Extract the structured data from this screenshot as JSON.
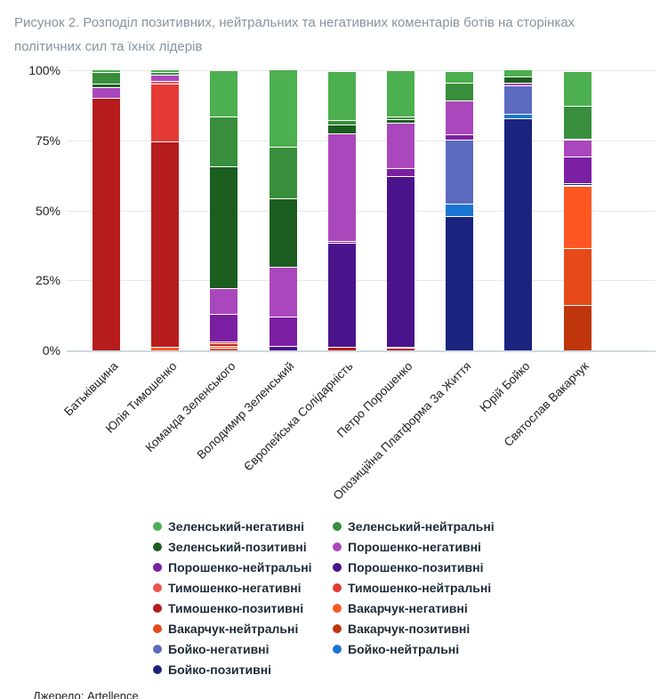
{
  "title": "Рисунок 2. Розподіл позитивних, нейтральних та негативних коментарів ботів на сторінках політичних сил та їхніх лідерів",
  "source": "Джерело: Artellence",
  "chart_data": {
    "type": "bar",
    "variant": "stacked-percent",
    "grid": true,
    "ylim": [
      0,
      100
    ],
    "y_ticks": [
      {
        "percent": 100,
        "label": "100%"
      },
      {
        "percent": 75,
        "label": "75%"
      },
      {
        "percent": 50,
        "label": "50%"
      },
      {
        "percent": 25,
        "label": "25%"
      },
      {
        "percent": 0,
        "label": "0%"
      }
    ],
    "categories": [
      "Батьківщина",
      "Юлія Тимошенко",
      "Команда Зеленського",
      "Володимир Зеленський",
      "Європейська Солідарність",
      "Петро Порошенко",
      "Опозиційна Платформа За Життя",
      "Юрій Бойко",
      "Святослав Вакарчук"
    ],
    "series_stack_order_note": "bottom-to-top stacking; values are percent of each bar",
    "series": [
      {
        "name": "Вакарчук-позитивні",
        "color": "#bf360c",
        "values": [
          0,
          0,
          0,
          0,
          0,
          0,
          0,
          0,
          15.8
        ]
      },
      {
        "name": "Вакарчук-нейтральні",
        "color": "#e64a19",
        "values": [
          0,
          0,
          0.7,
          0,
          0,
          0,
          0,
          0,
          20.5
        ]
      },
      {
        "name": "Вакарчук-негативні",
        "color": "#ff5722",
        "values": [
          0,
          1,
          0.7,
          0,
          0,
          0,
          0,
          0,
          22
        ]
      },
      {
        "name": "Тимошенко-позитивні",
        "color": "#b71c1c",
        "values": [
          90,
          74,
          0.7,
          0,
          1,
          0.6,
          0,
          0,
          0.5
        ]
      },
      {
        "name": "Тимошенко-нейтральні",
        "color": "#e53935",
        "values": [
          0,
          21,
          0.7,
          0,
          0,
          0.4,
          0,
          0,
          0
        ]
      },
      {
        "name": "Тимошенко-негативні",
        "color": "#ef5350",
        "values": [
          0,
          0.7,
          0,
          0,
          0,
          0,
          0,
          0,
          0
        ]
      },
      {
        "name": "Бойко-позитивні",
        "color": "#1a237e",
        "values": [
          0,
          0,
          0,
          0,
          0,
          0,
          47.5,
          82.5,
          0.6
        ]
      },
      {
        "name": "Бойко-нейтральні",
        "color": "#1976d2",
        "values": [
          0,
          0,
          0,
          0,
          0,
          0,
          4.5,
          1.5,
          0
        ]
      },
      {
        "name": "Бойко-негативні",
        "color": "#5c6bc0",
        "values": [
          0,
          0,
          0,
          0,
          0,
          0,
          22.8,
          10.2,
          0
        ]
      },
      {
        "name": "Порошенко-позитивні",
        "color": "#4a148c",
        "values": [
          0,
          0,
          0,
          1.3,
          37,
          61,
          0,
          0,
          0
        ]
      },
      {
        "name": "Порошенко-нейтральні",
        "color": "#7b1fa2",
        "values": [
          0,
          0,
          10,
          10.3,
          0.8,
          2.9,
          2.1,
          0,
          9.5
        ]
      },
      {
        "name": "Порошенко-негативні",
        "color": "#ab47bc",
        "values": [
          3.5,
          2.3,
          9.2,
          17.8,
          38.5,
          16.2,
          12,
          0.9,
          5.9
        ]
      },
      {
        "name": "Зеленський-позитивні",
        "color": "#1b5e20",
        "values": [
          1.5,
          0,
          43.5,
          24.5,
          3,
          1.3,
          0,
          2.5,
          0.5
        ]
      },
      {
        "name": "Зеленський-нейтральні",
        "color": "#388e3c",
        "values": [
          4,
          1,
          17.8,
          18.6,
          1.6,
          0.7,
          6.3,
          0,
          11.6
        ]
      },
      {
        "name": "Зеленський-негативні",
        "color": "#4caf50",
        "values": [
          1,
          1,
          16.3,
          27.5,
          17.5,
          16.6,
          4.2,
          2.3,
          12.6
        ]
      }
    ],
    "legend": {
      "position": "bottom",
      "columns": 2,
      "order": [
        "Зеленський-негативні",
        "Зеленський-нейтральні",
        "Зеленський-позитивні",
        "Порошенко-негативні",
        "Порошенко-нейтральні",
        "Порошенко-позитивні",
        "Тимошенко-негативні",
        "Тимошенко-нейтральні",
        "Тимошенко-позитивні",
        "Вакарчук-негативні",
        "Вакарчук-нейтральні",
        "Вакарчук-позитивні",
        "Бойко-негативні",
        "Бойко-нейтральні",
        "Бойко-позитивні"
      ]
    }
  }
}
